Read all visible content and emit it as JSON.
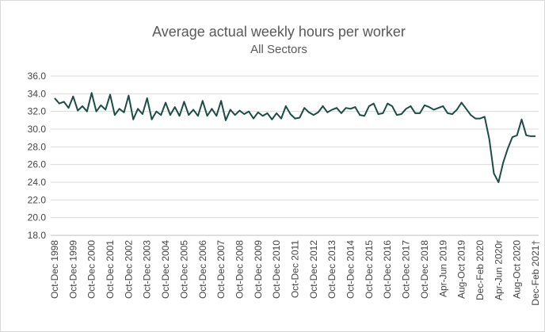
{
  "chart_data": {
    "type": "line",
    "title": "Average actual weekly hours per worker",
    "subtitle": "All Sectors",
    "categories": [
      "Oct-Dec 1998",
      null,
      null,
      null,
      "Oct-Dec 1999",
      null,
      null,
      null,
      "Oct-Dec 2000",
      null,
      null,
      null,
      "Oct-Dec 2001",
      null,
      null,
      null,
      "Oct-Dec 2002",
      null,
      null,
      null,
      "Oct-Dec 2003",
      null,
      null,
      null,
      "Oct-Dec 2004",
      null,
      null,
      null,
      "Oct-Dec 2005",
      null,
      null,
      null,
      "Oct-Dec 2006",
      null,
      null,
      null,
      "Oct-Dec 2007",
      null,
      null,
      null,
      "Oct-Dec 2008",
      null,
      null,
      null,
      "Oct-Dec 2009",
      null,
      null,
      null,
      "Oct-Dec 2010",
      null,
      null,
      null,
      "Oct-Dec 2011",
      null,
      null,
      null,
      "Oct-Dec 2012",
      null,
      null,
      null,
      "Oct-Dec 2013",
      null,
      null,
      null,
      "Oct-Dec 2014",
      null,
      null,
      null,
      "Oct-Dec 2015",
      null,
      null,
      null,
      "Oct-Dec 2016",
      null,
      null,
      null,
      "Oct-Dec 2017",
      null,
      null,
      null,
      "Oct-Dec 2018",
      null,
      null,
      null,
      "Apr-Jun 2019",
      null,
      null,
      null,
      "Aug-Oct 2019",
      null,
      null,
      null,
      "Dec-Feb 2020",
      null,
      null,
      null,
      "Apr-Jun 2020r",
      null,
      null,
      null,
      "Aug-Oct 2020",
      null,
      null,
      null,
      "Dec-Feb 2021†"
    ],
    "values": [
      33.5,
      32.9,
      33.1,
      32.4,
      33.7,
      32.1,
      32.6,
      32.0,
      34.1,
      32.0,
      32.7,
      32.2,
      33.9,
      31.6,
      32.3,
      31.9,
      33.8,
      31.1,
      32.3,
      31.7,
      33.5,
      31.1,
      32.0,
      31.6,
      33.0,
      31.6,
      32.5,
      31.5,
      33.1,
      31.6,
      32.2,
      31.5,
      33.2,
      31.5,
      32.3,
      31.5,
      33.2,
      31.0,
      32.2,
      31.6,
      32.1,
      31.7,
      32.0,
      31.2,
      31.9,
      31.5,
      31.8,
      31.1,
      31.8,
      31.2,
      32.6,
      31.7,
      31.2,
      31.3,
      32.4,
      31.9,
      31.6,
      31.9,
      32.6,
      31.9,
      32.2,
      32.4,
      31.8,
      32.4,
      32.3,
      32.5,
      31.6,
      31.5,
      32.6,
      32.9,
      31.7,
      31.8,
      32.9,
      32.6,
      31.6,
      31.7,
      32.3,
      32.6,
      31.8,
      31.8,
      32.7,
      32.5,
      32.2,
      32.4,
      32.6,
      31.8,
      31.7,
      32.2,
      33.0,
      32.3,
      31.6,
      31.2,
      31.2,
      31.4,
      28.9,
      25.0,
      24.0,
      26.2,
      27.8,
      29.1,
      29.3,
      31.1,
      29.3,
      29.2,
      29.2
    ],
    "color": "#1b4d45",
    "ylim": [
      18,
      36
    ],
    "yticks": [
      {
        "value": 18,
        "label": "18.0"
      },
      {
        "value": 20,
        "label": "20.0"
      },
      {
        "value": 22,
        "label": "22.0"
      },
      {
        "value": 24,
        "label": "24.0"
      },
      {
        "value": 26,
        "label": "26.0"
      },
      {
        "value": 28,
        "label": "28.0"
      },
      {
        "value": 30,
        "label": "30.0"
      },
      {
        "value": 32,
        "label": "32.0"
      },
      {
        "value": 34,
        "label": "34.0"
      },
      {
        "value": 36,
        "label": "36.0"
      }
    ],
    "grid": true
  }
}
